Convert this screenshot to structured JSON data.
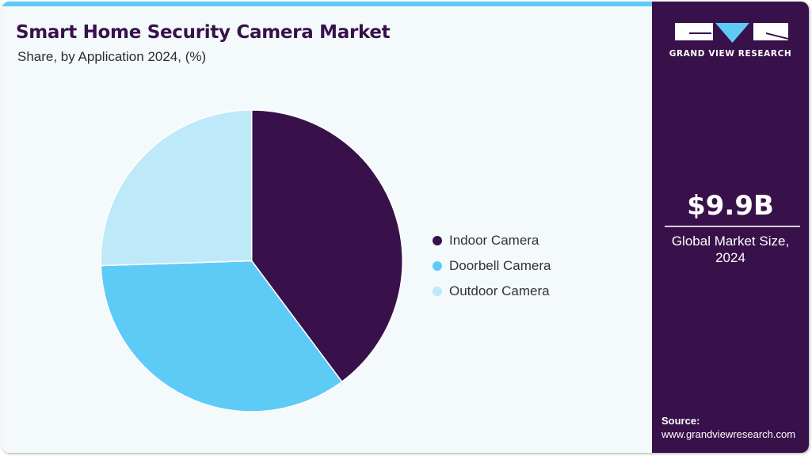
{
  "header": {
    "title": "Smart Home Security Camera Market",
    "subtitle": "Share, by Application 2024, (%)"
  },
  "colors": {
    "accent_bar": "#5ecbf6",
    "brand_purple": "#38114a",
    "background": "#f4f9fc"
  },
  "chart_data": {
    "type": "pie",
    "title": "Smart Home Security Camera Market",
    "subtitle": "Share, by Application 2024, (%)",
    "categories": [
      "Indoor Camera",
      "Doorbell Camera",
      "Outdoor Camera"
    ],
    "values": [
      39.8,
      34.7,
      25.5
    ],
    "colors": [
      "#38114a",
      "#5ecbf6",
      "#bde9f9"
    ],
    "start_angle_deg": 0,
    "direction": "clockwise",
    "legend_position": "right",
    "data_labels": false
  },
  "legend": {
    "items": [
      {
        "label": "Indoor Camera",
        "color": "#38114a"
      },
      {
        "label": "Doorbell Camera",
        "color": "#5ecbf6"
      },
      {
        "label": "Outdoor Camera",
        "color": "#bde9f9"
      }
    ]
  },
  "side_panel": {
    "logo_text": "GRAND VIEW RESEARCH",
    "market_value": "$9.9B",
    "market_label_line1": "Global Market Size,",
    "market_label_line2": "2024",
    "source_label": "Source:",
    "source_url": "www.grandviewresearch.com"
  }
}
